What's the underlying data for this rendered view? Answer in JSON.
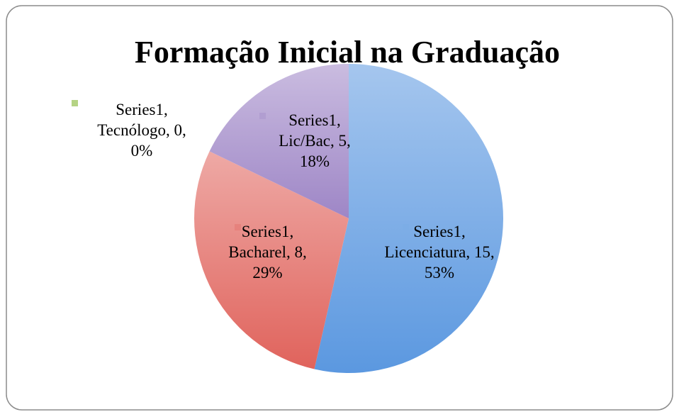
{
  "chart_data": {
    "type": "pie",
    "title": "Formação Inicial na Graduação",
    "series_name": "Series1",
    "categories": [
      "Licenciatura",
      "Bacharel",
      "Lic/Bac",
      "Tecnólogo"
    ],
    "values": [
      15,
      8,
      5,
      0
    ],
    "value_labels": [
      "Series1, Licenciatura, 15, 53%",
      "Series1, Bacharel, 8, 29%",
      "Series1, Lic/Bac, 5, 18%",
      "Series1, Tecnólogo, 0, 0%"
    ],
    "colors": [
      "#5b98e0",
      "#e0635c",
      "#9e86c6",
      "#a3c865"
    ]
  }
}
